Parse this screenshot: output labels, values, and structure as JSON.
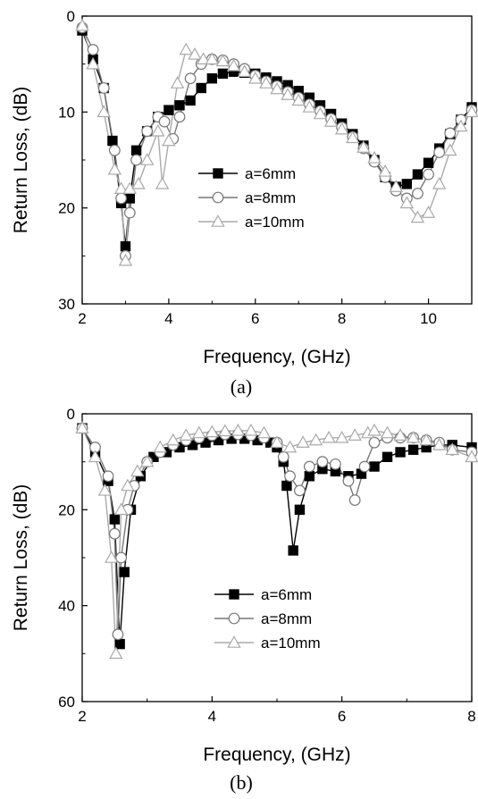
{
  "chart_data": [
    {
      "type": "line",
      "caption": "(a)",
      "xlabel": "Frequency, (GHz)",
      "ylabel": "Return Loss, (dB)",
      "xlim": [
        2,
        11
      ],
      "ylim": [
        0,
        30
      ],
      "y_inverted": true,
      "xticks": [
        "2",
        "4",
        "6",
        "8",
        "10"
      ],
      "yticks": [
        "0",
        "10",
        "20",
        "30"
      ],
      "legend_position": "center",
      "series": [
        {
          "name": "a=6mm",
          "marker": "square",
          "color": "#000000",
          "x": [
            2.0,
            2.25,
            2.5,
            2.7,
            2.9,
            3.0,
            3.1,
            3.25,
            3.5,
            3.75,
            4.0,
            4.25,
            4.5,
            4.75,
            5.0,
            5.25,
            5.5,
            5.75,
            6.0,
            6.25,
            6.5,
            6.75,
            7.0,
            7.25,
            7.5,
            7.75,
            8.0,
            8.25,
            8.5,
            8.75,
            9.0,
            9.25,
            9.5,
            9.75,
            10.0,
            10.25,
            10.5,
            10.75,
            11.0
          ],
          "y": [
            1.5,
            4.5,
            7.5,
            13,
            19.5,
            24,
            19,
            14,
            12,
            10.5,
            9.8,
            9.3,
            8.8,
            7.5,
            6.5,
            6.0,
            5.8,
            5.9,
            6.0,
            6.4,
            6.8,
            7.2,
            7.8,
            8.5,
            9.3,
            10.2,
            11.2,
            12.3,
            13.5,
            15,
            16.8,
            17.8,
            17.5,
            16.5,
            15.3,
            13.8,
            12.3,
            10.8,
            9.5
          ]
        },
        {
          "name": "a=8mm",
          "marker": "circle",
          "color": "#777777",
          "x": [
            2.0,
            2.25,
            2.5,
            2.75,
            2.9,
            3.0,
            3.1,
            3.25,
            3.5,
            3.75,
            3.9,
            4.1,
            4.25,
            4.5,
            4.75,
            5.0,
            5.25,
            5.5,
            5.75,
            6.0,
            6.25,
            6.5,
            6.75,
            7.0,
            7.25,
            7.5,
            7.75,
            8.0,
            8.25,
            8.5,
            8.75,
            9.0,
            9.25,
            9.5,
            9.75,
            10.0,
            10.25,
            10.5,
            10.75,
            11.0
          ],
          "y": [
            1.2,
            3.5,
            7.5,
            14,
            19,
            25,
            20.5,
            15,
            12,
            10.5,
            11,
            12.8,
            10.5,
            6.5,
            5.0,
            4.5,
            4.6,
            5.0,
            5.5,
            6.2,
            6.8,
            7.3,
            7.9,
            8.5,
            9.2,
            9.9,
            10.7,
            11.6,
            12.6,
            13.8,
            15.2,
            16.8,
            18.2,
            19.0,
            18.5,
            16.5,
            14.2,
            12.2,
            10.8,
            9.8
          ]
        },
        {
          "name": "a=10mm",
          "marker": "triangle",
          "color": "#aaaaaa",
          "x": [
            2.0,
            2.25,
            2.5,
            2.75,
            2.9,
            3.0,
            3.1,
            3.3,
            3.5,
            3.75,
            3.85,
            4.0,
            4.2,
            4.4,
            4.6,
            4.8,
            5.0,
            5.25,
            5.5,
            5.75,
            6.0,
            6.25,
            6.5,
            6.75,
            7.0,
            7.25,
            7.5,
            7.75,
            8.0,
            8.25,
            8.5,
            8.75,
            9.0,
            9.25,
            9.5,
            9.75,
            10.0,
            10.25,
            10.5,
            10.75,
            11.0
          ],
          "y": [
            1.0,
            5.0,
            10.0,
            16,
            18,
            25.5,
            18,
            17.5,
            15,
            12,
            17.5,
            13,
            7.0,
            3.5,
            4.0,
            4.5,
            4.5,
            4.7,
            5.2,
            5.8,
            6.5,
            7.0,
            7.6,
            8.2,
            8.8,
            9.5,
            10.2,
            11.0,
            11.8,
            12.7,
            13.7,
            14.8,
            16.2,
            17.8,
            19.5,
            21.0,
            20.5,
            17.5,
            14.0,
            11.5,
            10.0
          ]
        }
      ]
    },
    {
      "type": "line",
      "caption": "(b)",
      "xlabel": "Frequency, (GHz)",
      "ylabel": "Return Loss, (dB)",
      "xlim": [
        2,
        8
      ],
      "ylim": [
        0,
        60
      ],
      "y_inverted": true,
      "xticks": [
        "2",
        "4",
        "6",
        "8"
      ],
      "yticks": [
        "0",
        "20",
        "40",
        "60"
      ],
      "legend_position": "center",
      "series": [
        {
          "name": "a=6mm",
          "marker": "square",
          "color": "#000000",
          "x": [
            2.0,
            2.2,
            2.4,
            2.5,
            2.58,
            2.65,
            2.75,
            2.9,
            3.1,
            3.3,
            3.5,
            3.7,
            3.9,
            4.1,
            4.3,
            4.5,
            4.7,
            4.9,
            5.0,
            5.1,
            5.15,
            5.25,
            5.35,
            5.5,
            5.7,
            5.9,
            6.1,
            6.3,
            6.5,
            6.7,
            6.9,
            7.1,
            7.3,
            7.5,
            7.7,
            8.0
          ],
          "y": [
            3,
            8,
            14,
            22,
            48,
            33,
            20,
            13,
            9,
            8,
            7,
            6.5,
            6,
            5.5,
            5.2,
            5.2,
            5.5,
            6,
            7,
            10,
            15,
            28.5,
            20,
            13,
            11.5,
            12,
            13,
            12.5,
            11,
            9,
            8,
            7.5,
            7,
            6.5,
            6.5,
            7
          ]
        },
        {
          "name": "a=8mm",
          "marker": "circle",
          "color": "#777777",
          "x": [
            2.0,
            2.2,
            2.4,
            2.5,
            2.55,
            2.6,
            2.7,
            2.8,
            3.0,
            3.2,
            3.4,
            3.6,
            3.8,
            4.0,
            4.2,
            4.4,
            4.6,
            4.8,
            5.0,
            5.1,
            5.2,
            5.35,
            5.5,
            5.7,
            5.9,
            6.1,
            6.2,
            6.35,
            6.5,
            6.7,
            6.9,
            7.1,
            7.3,
            7.5,
            7.7,
            8.0
          ],
          "y": [
            3,
            7,
            13,
            25,
            46,
            30,
            20,
            15,
            10,
            8,
            6.5,
            5.5,
            5,
            4.5,
            4.3,
            4.3,
            4.5,
            5,
            6,
            9,
            13,
            16,
            11,
            10,
            10.5,
            14,
            18,
            11,
            6,
            5,
            5,
            5,
            5.5,
            6,
            7.5,
            8
          ]
        },
        {
          "name": "a=10mm",
          "marker": "triangle",
          "color": "#aaaaaa",
          "x": [
            2.0,
            2.2,
            2.35,
            2.45,
            2.52,
            2.6,
            2.7,
            2.85,
            3.0,
            3.2,
            3.4,
            3.6,
            3.8,
            4.0,
            4.2,
            4.4,
            4.6,
            4.8,
            5.0,
            5.2,
            5.4,
            5.6,
            5.8,
            6.0,
            6.2,
            6.4,
            6.5,
            6.7,
            6.9,
            7.1,
            7.3,
            7.5,
            7.7,
            8.0
          ],
          "y": [
            3,
            9,
            16,
            30,
            50,
            20,
            15,
            12,
            10,
            7,
            5.5,
            4.5,
            4,
            3.8,
            3.6,
            3.5,
            3.5,
            4,
            6,
            7,
            6,
            5.5,
            5,
            5,
            4.5,
            4,
            3.5,
            4,
            4.5,
            5,
            5.5,
            6.5,
            7.5,
            9
          ]
        }
      ]
    }
  ]
}
